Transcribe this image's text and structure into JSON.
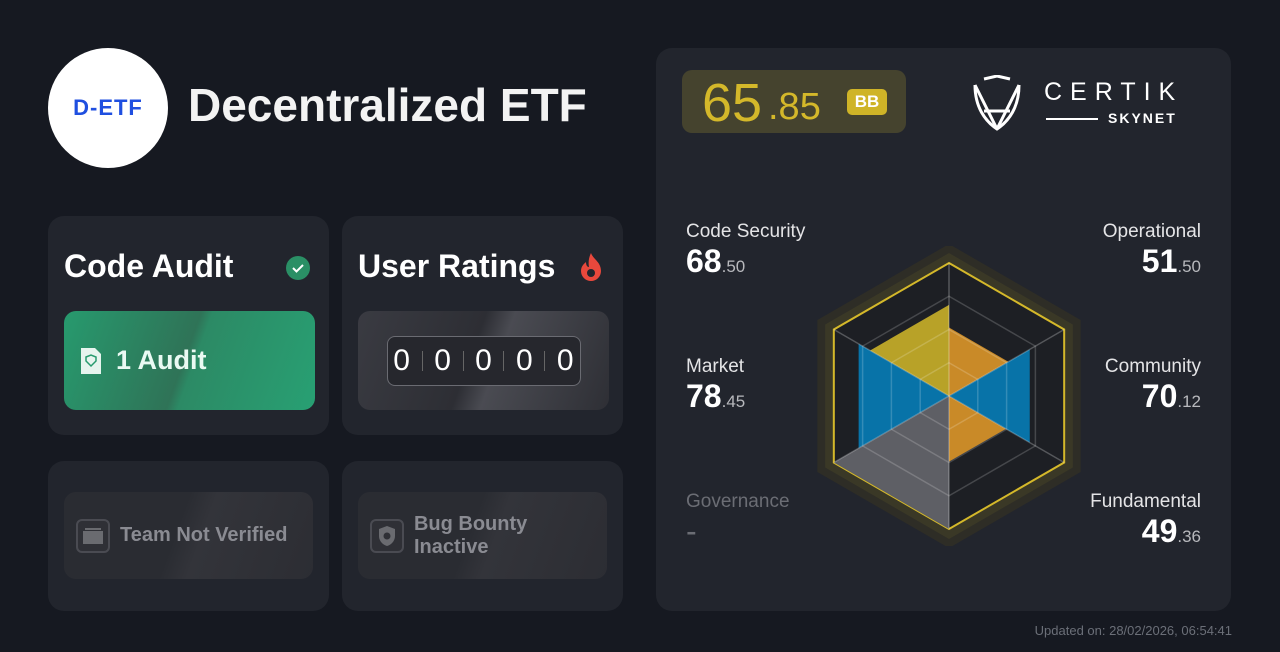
{
  "project": {
    "logo_text": "D-ETF",
    "name": "Decentralized ETF"
  },
  "code_audit": {
    "title": "Code Audit",
    "button": "1 Audit"
  },
  "user_ratings": {
    "title": "User Ratings",
    "digits": [
      "0",
      "0",
      "0",
      "0",
      "0"
    ]
  },
  "team": {
    "label": "Team Not Verified"
  },
  "bug_bounty": {
    "label": "Bug Bounty Inactive"
  },
  "score": {
    "integer": "65",
    "decimal": ".85",
    "grade": "BB"
  },
  "brand": {
    "name": "CERTIK",
    "sub": "SKYNET"
  },
  "categories": [
    {
      "key": "code_security",
      "label": "Code Security",
      "int": "68",
      "dec": ".50",
      "value": 68.5,
      "color": "#b8a228"
    },
    {
      "key": "operational",
      "label": "Operational",
      "int": "51",
      "dec": ".50",
      "value": 51.5,
      "color": "#c98a28"
    },
    {
      "key": "market",
      "label": "Market",
      "int": "78",
      "dec": ".45",
      "value": 78.45,
      "color": "#0873a8"
    },
    {
      "key": "community",
      "label": "Community",
      "int": "70",
      "dec": ".12",
      "value": 70.12,
      "color": "#0873a8"
    },
    {
      "key": "governance",
      "label": "Governance",
      "int": "-",
      "dec": "",
      "value": null,
      "color": "#5e5f65"
    },
    {
      "key": "fundamental",
      "label": "Fundamental",
      "int": "49",
      "dec": ".36",
      "value": 49.36,
      "color": "#c98a28"
    }
  ],
  "colors": {
    "accent": "#d4b82a",
    "green": "#279a6e",
    "panel": "#22252d"
  },
  "updated": "Updated on: 28/02/2026, 06:54:41"
}
